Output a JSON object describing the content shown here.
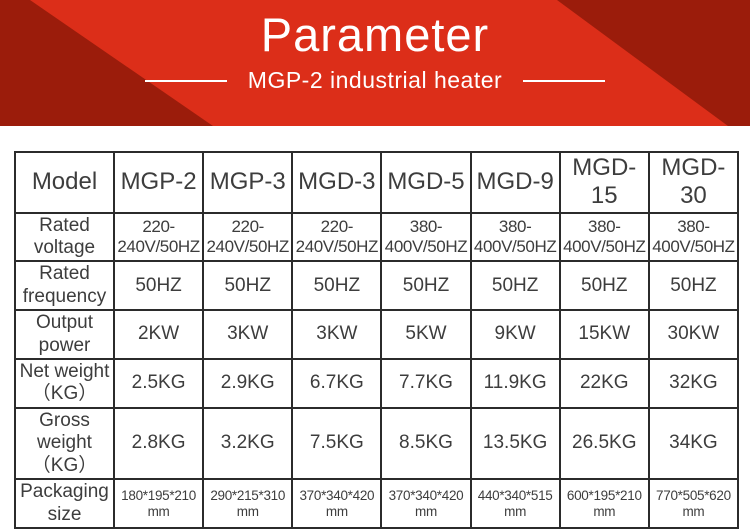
{
  "banner": {
    "title": "Parameter",
    "subtitle": "MGP-2 industrial heater"
  },
  "colors": {
    "banner_red": "#dc2e19",
    "banner_dark_red": "#9b1c0b",
    "table_border": "#2b2b2b",
    "text": "#3d3d3d"
  },
  "table": {
    "header": [
      "Model",
      "MGP-2",
      "MGP-3",
      "MGD-3",
      "MGD-5",
      "MGD-9",
      "MGD-15",
      "MGD-30"
    ],
    "rows": [
      {
        "label": "Rated\nvoltage",
        "values": [
          "220-\n240V/50HZ",
          "220-\n240V/50HZ",
          "220-\n240V/50HZ",
          "380-\n400V/50HZ",
          "380-\n400V/50HZ",
          "380-\n400V/50HZ",
          "380-\n400V/50HZ"
        ]
      },
      {
        "label": "Rated\nfrequency",
        "values": [
          "50HZ",
          "50HZ",
          "50HZ",
          "50HZ",
          "50HZ",
          "50HZ",
          "50HZ"
        ]
      },
      {
        "label": "Output\npower",
        "values": [
          "2KW",
          "3KW",
          "3KW",
          "5KW",
          "9KW",
          "15KW",
          "30KW"
        ]
      },
      {
        "label": "Net weight\n（KG）",
        "values": [
          "2.5KG",
          "2.9KG",
          "6.7KG",
          "7.7KG",
          "11.9KG",
          "22KG",
          "32KG"
        ]
      },
      {
        "label": "Gross\nweight\n（KG）",
        "values": [
          "2.8KG",
          "3.2KG",
          "7.5KG",
          "8.5KG",
          "13.5KG",
          "26.5KG",
          "34KG"
        ]
      },
      {
        "label": "Packaging\nsize",
        "values": [
          "180*195*210\nmm",
          "290*215*310\nmm",
          "370*340*420\nmm",
          "370*340*420\nmm",
          "440*340*515\nmm",
          "600*195*210\nmm",
          "770*505*620\nmm"
        ]
      }
    ]
  }
}
